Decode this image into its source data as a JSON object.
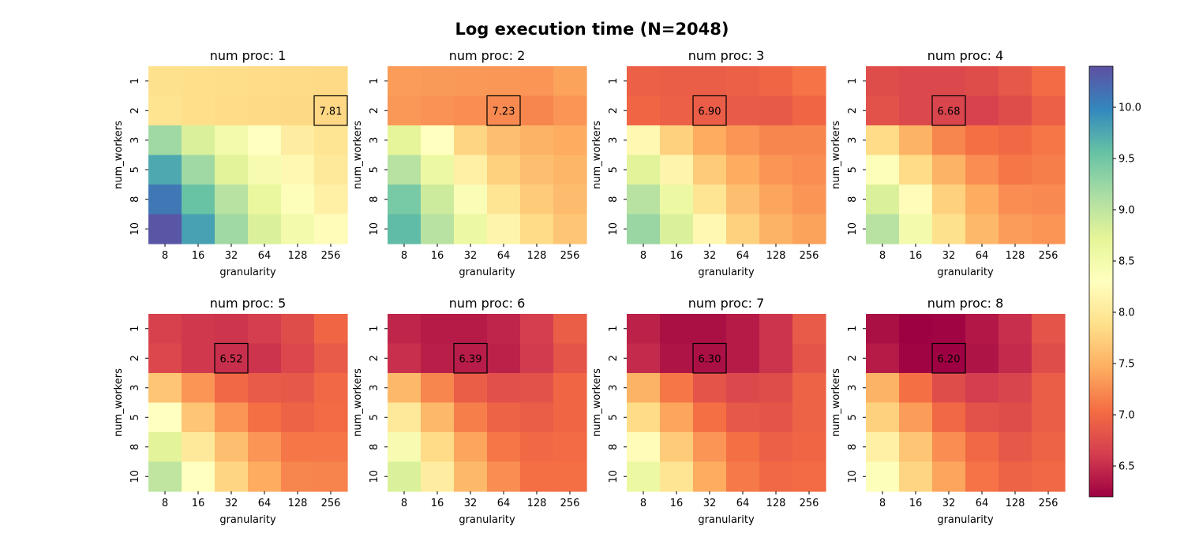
{
  "chart_data": {
    "type": "heatmap",
    "title": "Log execution time (N=2048)",
    "xlabel": "granularity",
    "ylabel": "num_workers",
    "x_categories": [
      "8",
      "16",
      "32",
      "64",
      "128",
      "256"
    ],
    "y_categories": [
      "1",
      "2",
      "3",
      "5",
      "8",
      "10"
    ],
    "colormap": "Spectral",
    "color_range": [
      6.2,
      10.4
    ],
    "colorbar_ticks": [
      "6.5",
      "7.0",
      "7.5",
      "8.0",
      "8.5",
      "9.0",
      "9.5",
      "10.0"
    ],
    "panels": [
      {
        "title": "num proc: 1",
        "annotation": {
          "x": "256",
          "y": "2",
          "label": "7.81"
        },
        "values": [
          [
            7.9,
            7.88,
            7.86,
            7.85,
            7.84,
            7.83
          ],
          [
            7.92,
            7.88,
            7.85,
            7.83,
            7.82,
            7.81
          ],
          [
            9.2,
            8.8,
            8.5,
            8.3,
            8.05,
            7.95
          ],
          [
            9.75,
            9.2,
            8.75,
            8.45,
            8.2,
            8.0
          ],
          [
            10.1,
            9.55,
            9.05,
            8.65,
            8.35,
            8.1
          ],
          [
            10.35,
            9.8,
            9.2,
            8.8,
            8.5,
            8.25
          ]
        ]
      },
      {
        "title": "num proc: 2",
        "annotation": {
          "x": "64",
          "y": "2",
          "label": "7.23"
        },
        "values": [
          [
            7.35,
            7.33,
            7.32,
            7.31,
            7.3,
            7.38
          ],
          [
            7.32,
            7.28,
            7.25,
            7.23,
            7.2,
            7.3
          ],
          [
            8.7,
            8.3,
            7.8,
            7.6,
            7.5,
            7.45
          ],
          [
            9.05,
            8.6,
            8.1,
            7.75,
            7.6,
            7.52
          ],
          [
            9.45,
            8.9,
            8.4,
            7.95,
            7.7,
            7.58
          ],
          [
            9.6,
            9.05,
            8.6,
            8.15,
            7.85,
            7.65
          ]
        ]
      },
      {
        "title": "num proc: 3",
        "annotation": {
          "x": "32",
          "y": "2",
          "label": "6.90"
        },
        "values": [
          [
            6.92,
            6.9,
            6.9,
            6.92,
            6.98,
            7.08
          ],
          [
            6.98,
            6.92,
            6.9,
            6.88,
            6.87,
            6.98
          ],
          [
            8.2,
            7.75,
            7.45,
            7.3,
            7.2,
            7.2
          ],
          [
            8.75,
            8.15,
            7.7,
            7.45,
            7.3,
            7.25
          ],
          [
            9.05,
            8.6,
            7.95,
            7.6,
            7.4,
            7.3
          ],
          [
            9.25,
            8.8,
            8.2,
            7.75,
            7.5,
            7.38
          ]
        ]
      },
      {
        "title": "num proc: 4",
        "annotation": {
          "x": "32",
          "y": "2",
          "label": "6.68"
        },
        "values": [
          [
            6.75,
            6.72,
            6.72,
            6.75,
            6.85,
            7.02
          ],
          [
            6.8,
            6.72,
            6.68,
            6.66,
            6.75,
            6.92
          ],
          [
            7.85,
            7.5,
            7.2,
            7.05,
            7.0,
            7.1
          ],
          [
            8.35,
            7.85,
            7.5,
            7.25,
            7.1,
            7.15
          ],
          [
            8.8,
            8.25,
            7.75,
            7.45,
            7.25,
            7.22
          ],
          [
            9.05,
            8.5,
            7.9,
            7.55,
            7.35,
            7.3
          ]
        ]
      },
      {
        "title": "num proc: 5",
        "annotation": {
          "x": "32",
          "y": "2",
          "label": "6.52"
        },
        "values": [
          [
            6.65,
            6.58,
            6.56,
            6.62,
            6.75,
            6.98
          ],
          [
            6.7,
            6.58,
            6.52,
            6.55,
            6.7,
            6.88
          ],
          [
            7.65,
            7.3,
            7.0,
            6.88,
            6.85,
            7.0
          ],
          [
            8.3,
            7.65,
            7.3,
            7.05,
            6.95,
            7.02
          ],
          [
            8.75,
            8.0,
            7.6,
            7.3,
            7.1,
            7.1
          ],
          [
            9.0,
            8.3,
            7.8,
            7.45,
            7.2,
            7.18
          ]
        ]
      },
      {
        "title": "num proc: 6",
        "annotation": {
          "x": "32",
          "y": "2",
          "label": "6.39"
        },
        "values": [
          [
            6.45,
            6.38,
            6.38,
            6.45,
            6.62,
            6.9
          ],
          [
            6.52,
            6.4,
            6.39,
            6.42,
            6.6,
            6.82
          ],
          [
            7.55,
            7.2,
            6.9,
            6.78,
            6.8,
            6.98
          ],
          [
            8.0,
            7.55,
            7.15,
            6.95,
            6.9,
            6.98
          ],
          [
            8.45,
            7.85,
            7.4,
            7.1,
            7.0,
            7.02
          ],
          [
            8.8,
            8.05,
            7.55,
            7.25,
            7.05,
            7.05
          ]
        ]
      },
      {
        "title": "num proc: 7",
        "annotation": {
          "x": "32",
          "y": "2",
          "label": "6.30"
        },
        "values": [
          [
            6.42,
            6.3,
            6.3,
            6.38,
            6.55,
            6.88
          ],
          [
            6.48,
            6.33,
            6.3,
            6.38,
            6.55,
            6.82
          ],
          [
            7.5,
            7.1,
            6.82,
            6.72,
            6.75,
            6.95
          ],
          [
            7.85,
            7.4,
            7.05,
            6.85,
            6.82,
            6.95
          ],
          [
            8.25,
            7.7,
            7.3,
            7.05,
            6.92,
            6.98
          ],
          [
            8.6,
            7.95,
            7.45,
            7.12,
            7.0,
            7.02
          ]
        ]
      },
      {
        "title": "num proc: 8",
        "annotation": {
          "x": "32",
          "y": "2",
          "label": "6.20"
        },
        "values": [
          [
            6.3,
            6.2,
            6.22,
            6.35,
            6.52,
            6.82
          ],
          [
            6.38,
            6.22,
            6.2,
            6.33,
            6.48,
            6.75
          ],
          [
            7.5,
            7.05,
            6.75,
            6.62,
            6.68,
            6.9
          ],
          [
            7.75,
            7.35,
            7.0,
            6.8,
            6.75,
            6.9
          ],
          [
            8.1,
            7.65,
            7.25,
            7.0,
            6.85,
            6.95
          ],
          [
            8.35,
            7.8,
            7.4,
            7.08,
            6.95,
            7.0
          ]
        ]
      }
    ]
  }
}
